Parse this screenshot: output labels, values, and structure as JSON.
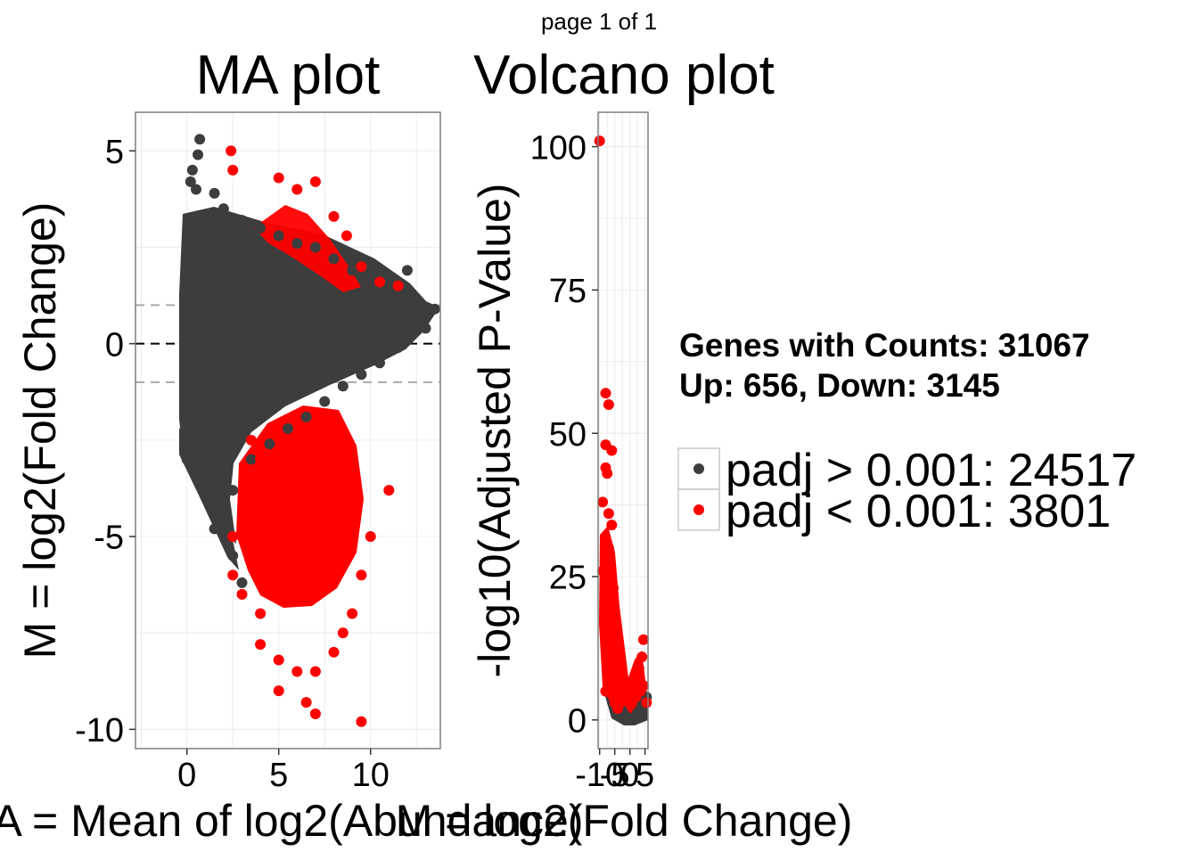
{
  "page_label": "page 1 of 1",
  "annotation": {
    "line1": "Genes with Counts: 31067",
    "line2": "Up: 656, Down: 3145"
  },
  "legend": {
    "entries": [
      {
        "label": "padj > 0.001: 24517",
        "color": "#3d3d3d"
      },
      {
        "label": "padj < 0.001: 3801",
        "color": "#ff0000"
      }
    ]
  },
  "chart_data": [
    {
      "type": "scatter",
      "title": "MA plot",
      "xlabel": "A = Mean of log2(Abundance)",
      "ylabel": "M = log2(Fold Change)",
      "xlim": [
        -2.8,
        13.8
      ],
      "ylim": [
        -10.5,
        6.0
      ],
      "x_ticks": [
        0,
        5,
        10
      ],
      "x_tick_labels": [
        "0",
        "5",
        "10"
      ],
      "y_ticks": [
        -10,
        -5,
        0,
        5
      ],
      "y_tick_labels": [
        "-10",
        "-5",
        "0",
        "5"
      ],
      "reference_lines": [
        {
          "y": 0,
          "style": "dashed",
          "color": "#000000"
        },
        {
          "y": 1,
          "style": "dashed",
          "color": "#aaaaaa"
        },
        {
          "y": -1,
          "style": "dashed",
          "color": "#aaaaaa"
        }
      ],
      "grid": true,
      "series": [
        {
          "name": "padj > 0.001: 24517",
          "color": "#3d3d3d",
          "points": [
            [
              0.7,
              5.3
            ],
            [
              0.6,
              4.9
            ],
            [
              0.3,
              4.5
            ],
            [
              0.2,
              4.2
            ],
            [
              0.5,
              4.0
            ],
            [
              1.5,
              3.9
            ],
            [
              2.0,
              3.5
            ],
            [
              3.0,
              3.2
            ],
            [
              4.0,
              3.0
            ],
            [
              5.0,
              2.8
            ],
            [
              6.0,
              2.6
            ],
            [
              7.0,
              2.5
            ],
            [
              8.0,
              2.2
            ],
            [
              9.0,
              1.9
            ],
            [
              10.0,
              1.7
            ],
            [
              11.0,
              1.2
            ],
            [
              12.0,
              1.9
            ],
            [
              12.5,
              0.9
            ],
            [
              13.5,
              0.9
            ],
            [
              13.0,
              0.4
            ],
            [
              12.0,
              0.1
            ],
            [
              11.5,
              -0.1
            ],
            [
              10.5,
              -0.5
            ],
            [
              9.5,
              -0.8
            ],
            [
              8.5,
              -1.1
            ],
            [
              7.5,
              -1.5
            ],
            [
              6.5,
              -1.9
            ],
            [
              5.5,
              -2.2
            ],
            [
              4.5,
              -2.6
            ],
            [
              3.5,
              -3.0
            ],
            [
              2.5,
              -3.8
            ],
            [
              2.0,
              -4.3
            ],
            [
              1.5,
              -4.8
            ],
            [
              2.5,
              -5.5
            ],
            [
              3.0,
              -6.2
            ],
            [
              0.0,
              -3.0
            ],
            [
              0.0,
              -2.5
            ]
          ]
        },
        {
          "name": "padj < 0.001: 3801",
          "color": "#ff0000",
          "points": [
            [
              2.4,
              5.0
            ],
            [
              2.5,
              4.5
            ],
            [
              5.0,
              4.3
            ],
            [
              7.0,
              4.2
            ],
            [
              6.0,
              4.0
            ],
            [
              8.0,
              3.3
            ],
            [
              8.7,
              2.8
            ],
            [
              9.5,
              2.0
            ],
            [
              10.5,
              1.6
            ],
            [
              11.5,
              1.5
            ],
            [
              3.5,
              -2.5
            ],
            [
              4.0,
              -3.0
            ],
            [
              6.0,
              -3.5
            ],
            [
              7.5,
              -4.0
            ],
            [
              9.0,
              -4.5
            ],
            [
              10.0,
              -5.0
            ],
            [
              11.0,
              -3.8
            ],
            [
              9.5,
              -6.0
            ],
            [
              9.0,
              -7.0
            ],
            [
              8.5,
              -7.5
            ],
            [
              8.0,
              -8.0
            ],
            [
              7.0,
              -8.5
            ],
            [
              6.0,
              -8.5
            ],
            [
              5.0,
              -9.0
            ],
            [
              6.5,
              -9.3
            ],
            [
              7.0,
              -9.6
            ],
            [
              9.5,
              -9.8
            ],
            [
              2.5,
              -5.0
            ],
            [
              2.5,
              -6.0
            ],
            [
              3.0,
              -6.5
            ],
            [
              4.0,
              -7.0
            ],
            [
              4.0,
              -7.8
            ],
            [
              5.0,
              -8.2
            ]
          ]
        }
      ]
    },
    {
      "type": "scatter",
      "title": "Volcano plot",
      "xlabel": "M = log2(Fold Change)",
      "ylabel": "-log10(Adjusted P-Value)",
      "xlim": [
        -10.5,
        6.0
      ],
      "ylim": [
        -5,
        106
      ],
      "x_ticks": [
        -10,
        -5,
        0,
        5
      ],
      "x_tick_labels": [
        "-10",
        "-5",
        "0",
        "5"
      ],
      "y_ticks": [
        0,
        25,
        50,
        75,
        100
      ],
      "y_tick_labels": [
        "0",
        "25",
        "50",
        "75",
        "100"
      ],
      "grid": true,
      "series": [
        {
          "name": "padj > 0.001: 24517",
          "color": "#3d3d3d",
          "points": [
            [
              -3,
              2
            ],
            [
              -2,
              1
            ],
            [
              -1,
              0.3
            ],
            [
              0,
              0
            ],
            [
              1,
              0.3
            ],
            [
              2,
              0.8
            ],
            [
              3,
              1.5
            ],
            [
              4,
              2.5
            ],
            [
              5,
              3
            ],
            [
              5.5,
              4
            ],
            [
              -2.5,
              1.5
            ],
            [
              -1.5,
              0.7
            ],
            [
              0.5,
              0.1
            ],
            [
              -0.5,
              0.2
            ],
            [
              1.5,
              0.5
            ],
            [
              2.5,
              1.2
            ]
          ]
        },
        {
          "name": "padj < 0.001: 3801",
          "color": "#ff0000",
          "points": [
            [
              -10,
              101
            ],
            [
              -8,
              57
            ],
            [
              -7,
              55
            ],
            [
              -8,
              48
            ],
            [
              -6,
              47
            ],
            [
              -8,
              44
            ],
            [
              -7.5,
              43
            ],
            [
              -9,
              38
            ],
            [
              -7,
              36
            ],
            [
              -6,
              34
            ],
            [
              -7,
              30
            ],
            [
              -8,
              28
            ],
            [
              -9,
              26
            ],
            [
              -6.5,
              25
            ],
            [
              -5.5,
              23
            ],
            [
              -7,
              21
            ],
            [
              -5,
              19
            ],
            [
              -8,
              17
            ],
            [
              -6,
              15
            ],
            [
              -4.5,
              13
            ],
            [
              -7,
              11
            ],
            [
              -5.5,
              9
            ],
            [
              -4,
              7
            ],
            [
              -6,
              6
            ],
            [
              -8,
              5
            ],
            [
              -3.5,
              5
            ],
            [
              -5,
              3
            ],
            [
              -3,
              3
            ],
            [
              -4,
              2
            ],
            [
              2,
              7
            ],
            [
              3,
              9
            ],
            [
              4,
              11
            ],
            [
              4.5,
              14
            ],
            [
              3.5,
              5
            ],
            [
              4.5,
              6
            ],
            [
              5.5,
              3
            ]
          ]
        }
      ]
    }
  ]
}
